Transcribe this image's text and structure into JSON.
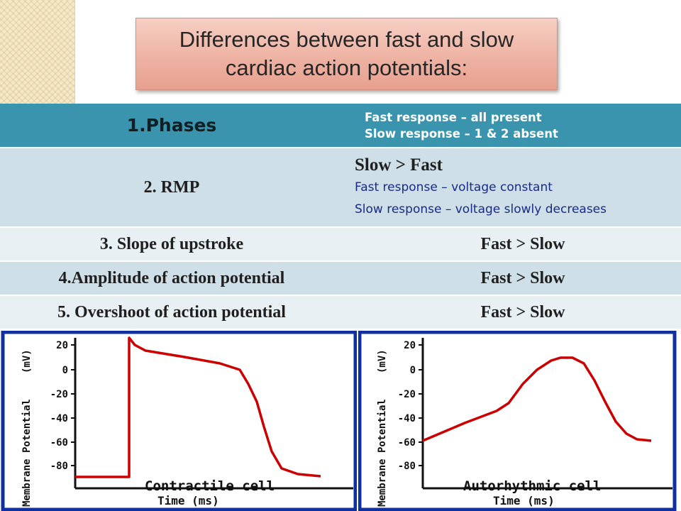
{
  "title": {
    "line1": "Differences between fast and slow",
    "line2": "cardiac action potentials:"
  },
  "table": {
    "header": {
      "label": "1.Phases",
      "line1": "Fast response – all present",
      "line2": "Slow response – 1 & 2 absent"
    },
    "rows": [
      {
        "label": "2. RMP",
        "value": "Slow > Fast",
        "notes": [
          "Fast response – voltage constant",
          "Slow response – voltage slowly decreases"
        ]
      },
      {
        "label": "3. Slope of upstroke",
        "value": "Fast > Slow"
      },
      {
        "label": "4.Amplitude of action potential",
        "value": "Fast > Slow"
      },
      {
        "label": "5. Overshoot of action potential",
        "value": "Fast > Slow"
      }
    ]
  },
  "graphs": [
    {
      "ylabel_1": "Membrane",
      "ylabel_2": "Potential",
      "ylabel_unit": "(mV)",
      "xlabel": "Time (ms)",
      "caption": "Contractile cell",
      "yticks": [
        "20",
        "0",
        "-20",
        "-40",
        "-60",
        "-80"
      ]
    },
    {
      "ylabel_1": "Membrane",
      "ylabel_2": "Potential",
      "ylabel_unit": "(mV)",
      "xlabel": "Time (ms)",
      "caption": "Autorhythmic cell",
      "yticks": [
        "20",
        "0",
        "-20",
        "-40",
        "-60",
        "-80"
      ]
    }
  ],
  "colors": {
    "table_header": "#3a94ad",
    "row_dark": "#cfdfe7",
    "row_light": "#e9f0f4",
    "trace": "#cc0000",
    "graph_frame": "#1030a0"
  }
}
